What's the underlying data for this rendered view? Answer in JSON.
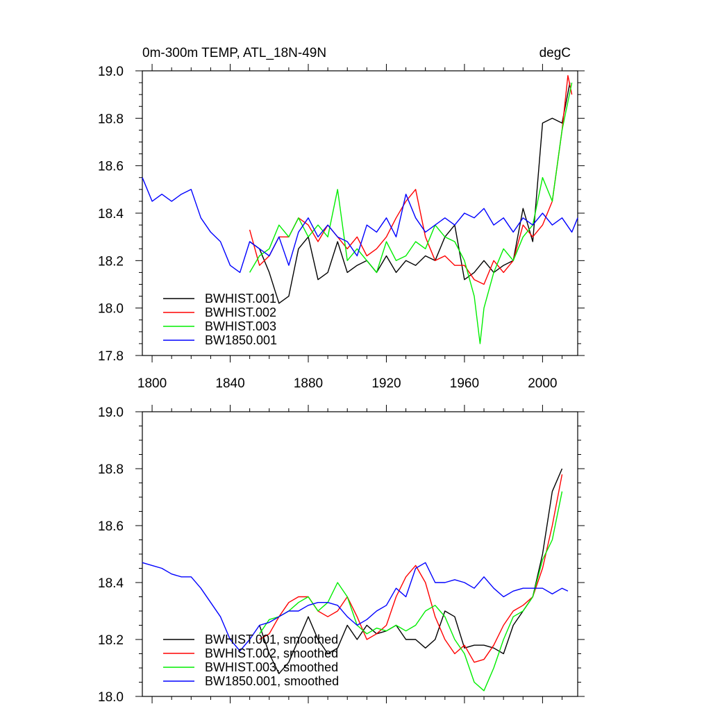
{
  "chart_data": [
    {
      "type": "line",
      "title": "0m-300m TEMP, ATL_18N-49N",
      "units": "degC",
      "xlim": [
        1795,
        2018
      ],
      "ylim": [
        17.8,
        19.0
      ],
      "xticks": [
        1800,
        1840,
        1880,
        1920,
        1960,
        2000
      ],
      "xtick_labels": [
        "1800",
        "1840",
        "1880",
        "1920",
        "1960",
        "2000"
      ],
      "yticks": [
        17.8,
        18.0,
        18.2,
        18.4,
        18.6,
        18.8,
        19.0
      ],
      "ytick_labels": [
        "17.8",
        "18.0",
        "18.2",
        "18.4",
        "18.6",
        "18.8",
        "19.0"
      ],
      "legend": [
        "BWHIST.001",
        "BWHIST.002",
        "BWHIST.003",
        "BW1850.001"
      ],
      "legend_position": "lower-left",
      "series": [
        {
          "name": "BWHIST.001",
          "color": "#000000",
          "x": [
            1850,
            1855,
            1860,
            1865,
            1870,
            1875,
            1880,
            1885,
            1890,
            1895,
            1900,
            1905,
            1910,
            1915,
            1920,
            1925,
            1930,
            1935,
            1940,
            1945,
            1950,
            1955,
            1960,
            1965,
            1970,
            1975,
            1980,
            1985,
            1990,
            1995,
            2000,
            2005,
            2010,
            2014
          ],
          "y": [
            18.28,
            18.25,
            18.15,
            18.02,
            18.05,
            18.25,
            18.3,
            18.12,
            18.15,
            18.28,
            18.15,
            18.18,
            18.2,
            18.15,
            18.22,
            18.15,
            18.2,
            18.18,
            18.22,
            18.2,
            18.3,
            18.35,
            18.12,
            18.15,
            18.2,
            18.15,
            18.18,
            18.2,
            18.42,
            18.28,
            18.78,
            18.8,
            18.78,
            18.95
          ]
        },
        {
          "name": "BWHIST.002",
          "color": "#ff0000",
          "x": [
            1850,
            1855,
            1860,
            1865,
            1870,
            1875,
            1880,
            1885,
            1890,
            1895,
            1900,
            1905,
            1910,
            1915,
            1920,
            1925,
            1930,
            1935,
            1940,
            1945,
            1950,
            1955,
            1960,
            1965,
            1970,
            1975,
            1980,
            1985,
            1990,
            1995,
            2000,
            2005,
            2010,
            2013,
            2015
          ],
          "y": [
            18.33,
            18.18,
            18.22,
            18.3,
            18.3,
            18.38,
            18.35,
            18.28,
            18.35,
            18.3,
            18.25,
            18.3,
            18.22,
            18.25,
            18.3,
            18.38,
            18.45,
            18.5,
            18.3,
            18.2,
            18.22,
            18.18,
            18.18,
            18.12,
            18.1,
            18.2,
            18.15,
            18.2,
            18.35,
            18.3,
            18.35,
            18.45,
            18.75,
            18.98,
            18.9
          ]
        },
        {
          "name": "BWHIST.003",
          "color": "#00ee00",
          "x": [
            1850,
            1855,
            1860,
            1865,
            1870,
            1875,
            1880,
            1885,
            1890,
            1895,
            1900,
            1905,
            1910,
            1915,
            1920,
            1925,
            1930,
            1935,
            1940,
            1945,
            1950,
            1955,
            1960,
            1965,
            1968,
            1970,
            1975,
            1980,
            1985,
            1990,
            1995,
            2000,
            2005,
            2010,
            2015
          ],
          "y": [
            18.15,
            18.22,
            18.25,
            18.35,
            18.3,
            18.38,
            18.3,
            18.35,
            18.3,
            18.5,
            18.2,
            18.25,
            18.2,
            18.15,
            18.28,
            18.2,
            18.22,
            18.28,
            18.25,
            18.35,
            18.3,
            18.28,
            18.2,
            18.05,
            17.85,
            18.0,
            18.15,
            18.25,
            18.2,
            18.3,
            18.35,
            18.55,
            18.45,
            18.75,
            18.95
          ]
        },
        {
          "name": "BW1850.001",
          "color": "#0000ff",
          "x": [
            1795,
            1800,
            1805,
            1810,
            1815,
            1820,
            1825,
            1830,
            1835,
            1840,
            1845,
            1850,
            1855,
            1860,
            1865,
            1870,
            1875,
            1880,
            1885,
            1890,
            1895,
            1900,
            1905,
            1910,
            1915,
            1920,
            1925,
            1930,
            1935,
            1940,
            1945,
            1950,
            1955,
            1960,
            1965,
            1970,
            1975,
            1980,
            1985,
            1990,
            1995,
            2000,
            2005,
            2010,
            2015,
            2018
          ],
          "y": [
            18.55,
            18.45,
            18.48,
            18.45,
            18.48,
            18.5,
            18.38,
            18.32,
            18.28,
            18.18,
            18.15,
            18.28,
            18.25,
            18.22,
            18.3,
            18.18,
            18.32,
            18.38,
            18.3,
            18.35,
            18.3,
            18.28,
            18.22,
            18.35,
            18.32,
            18.38,
            18.3,
            18.48,
            18.38,
            18.32,
            18.35,
            18.38,
            18.35,
            18.4,
            18.38,
            18.42,
            18.35,
            18.38,
            18.32,
            18.38,
            18.35,
            18.4,
            18.35,
            18.38,
            18.32,
            18.38
          ]
        }
      ]
    },
    {
      "type": "line",
      "title": "",
      "xlim": [
        1795,
        2018
      ],
      "ylim": [
        18.0,
        19.0
      ],
      "xticks": [
        1800,
        1840,
        1880,
        1920,
        1960,
        2000
      ],
      "yticks": [
        18.0,
        18.2,
        18.4,
        18.6,
        18.8,
        19.0
      ],
      "ytick_labels": [
        "18.0",
        "18.2",
        "18.4",
        "18.6",
        "18.8",
        "19.0"
      ],
      "legend": [
        "BWHIST.001, smoothed",
        "BWHIST.002, smoothed",
        "BWHIST.003, smoothed",
        "BW1850.001, smoothed"
      ],
      "legend_position": "lower-left",
      "series": [
        {
          "name": "BWHIST.001, smoothed",
          "color": "#000000",
          "x": [
            1855,
            1860,
            1865,
            1870,
            1875,
            1880,
            1885,
            1890,
            1895,
            1900,
            1905,
            1910,
            1915,
            1920,
            1925,
            1930,
            1935,
            1940,
            1945,
            1950,
            1955,
            1960,
            1965,
            1970,
            1975,
            1980,
            1985,
            1990,
            1995,
            2000,
            2005,
            2010
          ],
          "y": [
            18.25,
            18.15,
            18.08,
            18.12,
            18.2,
            18.28,
            18.2,
            18.15,
            18.17,
            18.25,
            18.2,
            18.25,
            18.22,
            18.23,
            18.25,
            18.2,
            18.2,
            18.17,
            18.2,
            18.3,
            18.28,
            18.17,
            18.18,
            18.18,
            18.17,
            18.15,
            18.25,
            18.3,
            18.35,
            18.5,
            18.72,
            18.8
          ]
        },
        {
          "name": "BWHIST.002, smoothed",
          "color": "#ff0000",
          "x": [
            1855,
            1860,
            1865,
            1870,
            1875,
            1880,
            1885,
            1890,
            1895,
            1900,
            1905,
            1910,
            1915,
            1920,
            1925,
            1930,
            1935,
            1940,
            1945,
            1950,
            1955,
            1960,
            1965,
            1970,
            1975,
            1980,
            1985,
            1990,
            1995,
            2000,
            2005,
            2010
          ],
          "y": [
            18.2,
            18.22,
            18.28,
            18.33,
            18.35,
            18.35,
            18.3,
            18.28,
            18.3,
            18.35,
            18.28,
            18.2,
            18.22,
            18.25,
            18.35,
            18.42,
            18.46,
            18.4,
            18.28,
            18.2,
            18.15,
            18.18,
            18.12,
            18.13,
            18.18,
            18.25,
            18.3,
            18.32,
            18.35,
            18.45,
            18.6,
            18.78
          ]
        },
        {
          "name": "BWHIST.003, smoothed",
          "color": "#00ee00",
          "x": [
            1855,
            1860,
            1865,
            1870,
            1875,
            1880,
            1885,
            1890,
            1895,
            1900,
            1905,
            1910,
            1915,
            1920,
            1925,
            1930,
            1935,
            1940,
            1945,
            1950,
            1955,
            1960,
            1965,
            1970,
            1975,
            1980,
            1985,
            1990,
            1995,
            2000,
            2005,
            2010
          ],
          "y": [
            18.22,
            18.27,
            18.28,
            18.3,
            18.33,
            18.35,
            18.3,
            18.33,
            18.4,
            18.35,
            18.25,
            18.22,
            18.24,
            18.23,
            18.25,
            18.23,
            18.25,
            18.3,
            18.32,
            18.28,
            18.2,
            18.15,
            18.05,
            18.02,
            18.1,
            18.2,
            18.28,
            18.3,
            18.35,
            18.48,
            18.55,
            18.72
          ]
        },
        {
          "name": "BW1850.001, smoothed",
          "color": "#0000ff",
          "x": [
            1795,
            1800,
            1805,
            1810,
            1815,
            1820,
            1825,
            1830,
            1835,
            1840,
            1845,
            1850,
            1855,
            1860,
            1865,
            1870,
            1875,
            1880,
            1885,
            1890,
            1895,
            1900,
            1905,
            1910,
            1915,
            1920,
            1925,
            1930,
            1935,
            1940,
            1945,
            1950,
            1955,
            1960,
            1965,
            1970,
            1975,
            1980,
            1985,
            1990,
            1995,
            2000,
            2005,
            2010,
            2013
          ],
          "y": [
            18.47,
            18.46,
            18.45,
            18.43,
            18.42,
            18.42,
            18.38,
            18.33,
            18.28,
            18.2,
            18.16,
            18.2,
            18.25,
            18.26,
            18.28,
            18.3,
            18.3,
            18.32,
            18.33,
            18.33,
            18.32,
            18.28,
            18.25,
            18.27,
            18.3,
            18.32,
            18.38,
            18.35,
            18.45,
            18.47,
            18.4,
            18.4,
            18.41,
            18.4,
            18.38,
            18.42,
            18.38,
            18.35,
            18.37,
            18.38,
            18.38,
            18.38,
            18.36,
            18.38,
            18.37
          ]
        }
      ]
    }
  ]
}
